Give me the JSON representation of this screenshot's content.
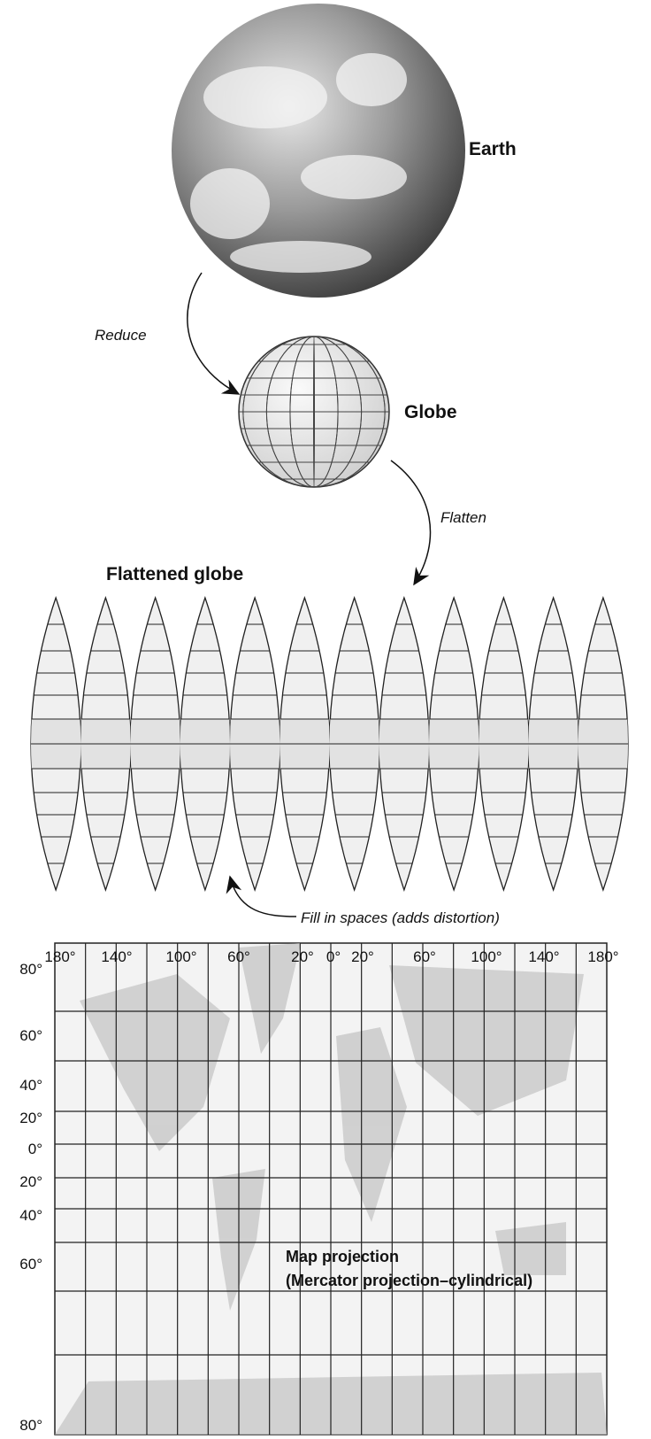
{
  "labels": {
    "earth": "Earth",
    "reduce": "Reduce",
    "globe": "Globe",
    "flatten": "Flatten",
    "flattened_globe": "Flattened globe",
    "fill_in": "Fill in spaces (adds distortion)"
  },
  "map": {
    "longitudes": [
      "180°",
      "140°",
      "100°",
      "60°",
      "20°",
      "0°",
      "20°",
      "60°",
      "100°",
      "140°",
      "180°"
    ],
    "latitudes": [
      "80°",
      "60°",
      "40°",
      "20°",
      "0°",
      "20°",
      "40°",
      "60°",
      "80°"
    ],
    "title": "Map projection",
    "subtitle": "(Mercator projection–cylindrical)"
  }
}
